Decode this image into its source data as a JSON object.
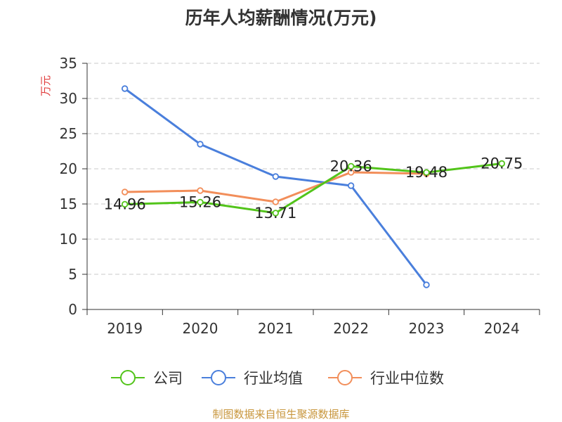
{
  "chart_data": {
    "type": "line",
    "title": "历年人均薪酬情况(万元)",
    "xlabel": "",
    "ylabel": "万元",
    "categories": [
      "2019",
      "2020",
      "2021",
      "2022",
      "2023",
      "2024"
    ],
    "ylim": [
      0,
      35
    ],
    "yticks": [
      0,
      5,
      10,
      15,
      20,
      25,
      30,
      35
    ],
    "grid": "horizontal dashed",
    "legend_position": "bottom",
    "series": [
      {
        "name": "公司",
        "color": "#52c41a",
        "values": [
          14.96,
          15.26,
          13.71,
          20.36,
          19.48,
          20.75
        ],
        "labels": [
          "14.96",
          "15.26",
          "13.71",
          "20.36",
          "19.48",
          "20.75"
        ]
      },
      {
        "name": "行业均值",
        "color": "#4a7fdc",
        "values": [
          31.4,
          23.5,
          18.9,
          17.6,
          3.5,
          null
        ]
      },
      {
        "name": "行业中位数",
        "color": "#f28e5a",
        "values": [
          16.7,
          16.9,
          15.3,
          19.5,
          19.3,
          null
        ]
      }
    ]
  },
  "source": "制图数据来自恒生聚源数据库"
}
